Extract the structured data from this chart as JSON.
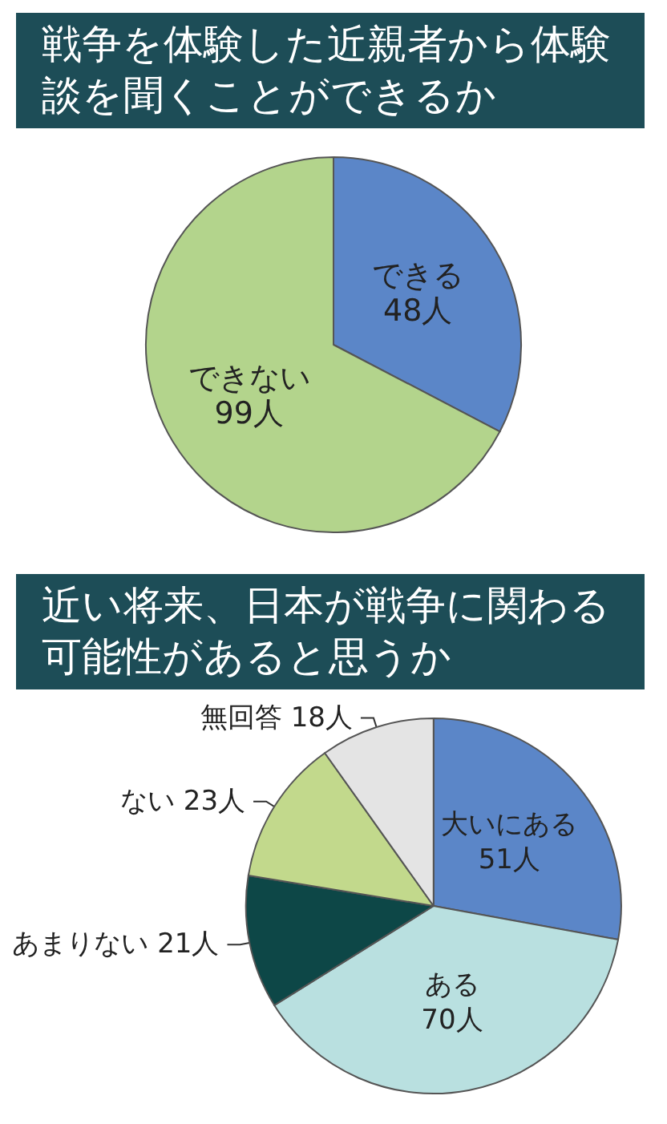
{
  "chart_data": [
    {
      "type": "pie",
      "title": "戦争を体験した近親者から体験談を聞くことができるか",
      "categories": [
        "できる",
        "できない"
      ],
      "values": [
        48,
        99
      ],
      "colors": [
        "#5b86c8",
        "#b3d48c"
      ],
      "value_labels": [
        "48人",
        "99人"
      ]
    },
    {
      "type": "pie",
      "title": "近い将来、日本が戦争に関わる可能性があると思うか",
      "categories": [
        "大いにある",
        "ある",
        "あまりない",
        "ない",
        "無回答"
      ],
      "values": [
        51,
        70,
        21,
        23,
        18
      ],
      "colors": [
        "#5b86c8",
        "#b9e0e0",
        "#0d4747",
        "#c2d98c",
        "#e4e4e4"
      ],
      "value_labels": [
        "51人",
        "70人",
        "21人",
        "23人",
        "18人"
      ]
    }
  ]
}
